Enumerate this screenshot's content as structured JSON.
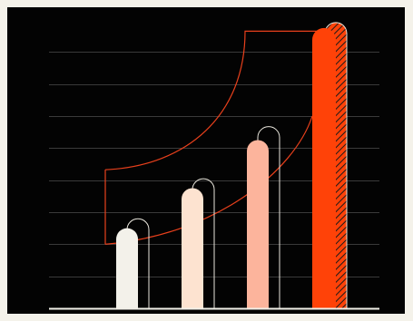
{
  "colors": {
    "background": "#030303",
    "page": "#f4f2ea",
    "gridline": "#3a3a3a",
    "axis": "#f2f0e8",
    "outline": "#e9e6dc",
    "curve": "#e8401c",
    "hatch": "#1a1a1a"
  },
  "chart_data": {
    "type": "bar",
    "title": "",
    "xlabel": "",
    "ylabel": "",
    "categories": [
      "",
      "",
      "",
      ""
    ],
    "values": [
      10,
      15,
      21,
      35
    ],
    "echo_values": [
      10.5,
      15.5,
      22,
      35
    ],
    "ylim": [
      0,
      36
    ],
    "gridlines": true,
    "gridline_values": [
      4,
      8,
      12,
      16,
      20,
      24,
      28,
      32
    ],
    "tick_labels_shown": false,
    "legend": "none",
    "bar_colors": [
      "#f3f1ea",
      "#fde3d0",
      "#fcb49c",
      "#ff4208"
    ],
    "last_bar_hatched": true,
    "curve_from_value": 17.3,
    "curve_to_value": 34.6,
    "curve_right_edge_value": 8.0
  }
}
